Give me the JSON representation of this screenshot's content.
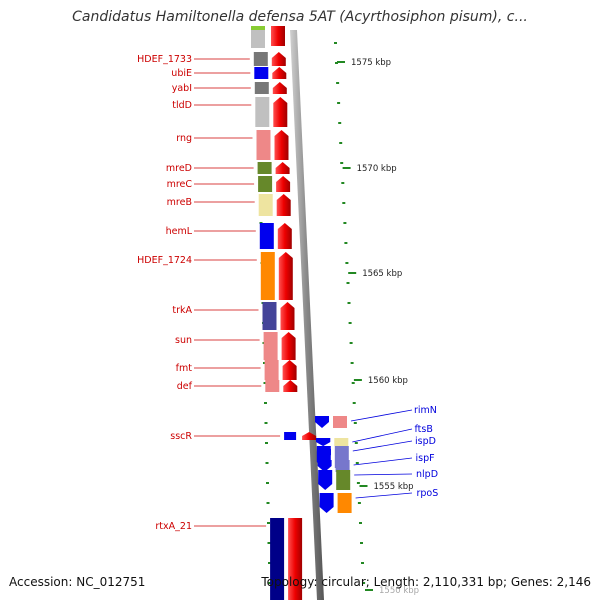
{
  "title": "Candidatus Hamiltonella defensa 5AT (Acyrthosiphon pisum), c...",
  "footer": {
    "accession": "Accession: NC_012751",
    "summary": "Topology: circular; Length: 2,110,331 bp; Genes: 2,146"
  },
  "kbp_labels": [
    "1575 kbp",
    "1570 kbp",
    "1565 kbp",
    "1560 kbp",
    "1555 kbp",
    "1550 kbp"
  ],
  "left_genes": [
    {
      "label": "HDEF_1733",
      "color": "#777777"
    },
    {
      "label": "ubiE",
      "color": "#0000ee"
    },
    {
      "label": "yabI",
      "color": "#777777"
    },
    {
      "label": "tldD",
      "color": "#c0c0c0"
    },
    {
      "label": "rng",
      "color": "#ee8888"
    },
    {
      "label": "mreD",
      "color": "#66882a"
    },
    {
      "label": "mreC",
      "color": "#66882a"
    },
    {
      "label": "mreB",
      "color": "#eee4a0"
    },
    {
      "label": "hemL",
      "color": "#0000ee"
    },
    {
      "label": "HDEF_1724",
      "color": "#ff8800"
    },
    {
      "label": "trkA",
      "color": "#444499"
    },
    {
      "label": "sun",
      "color": "#ee8888"
    },
    {
      "label": "fmt",
      "color": "#ee8888"
    },
    {
      "label": "def",
      "color": "#ee8888"
    },
    {
      "label": "sscR",
      "color": "#0000ee"
    },
    {
      "label": "rtxA_21",
      "color": "#000088"
    }
  ],
  "right_genes": [
    {
      "label": "rimN",
      "color": "#ee8888"
    },
    {
      "label": "ftsB",
      "color": "#eee4a0"
    },
    {
      "label": "ispD",
      "color": "#7777cc"
    },
    {
      "label": "ispF",
      "color": "#7777cc"
    },
    {
      "label": "nlpD",
      "color": "#66882a"
    },
    {
      "label": "rpoS",
      "color": "#ff8800"
    }
  ],
  "colors": {
    "forward_strand": "#ee0000",
    "reverse_strand": "#0000ee",
    "backbone": "#888888",
    "tick": "#228822"
  }
}
